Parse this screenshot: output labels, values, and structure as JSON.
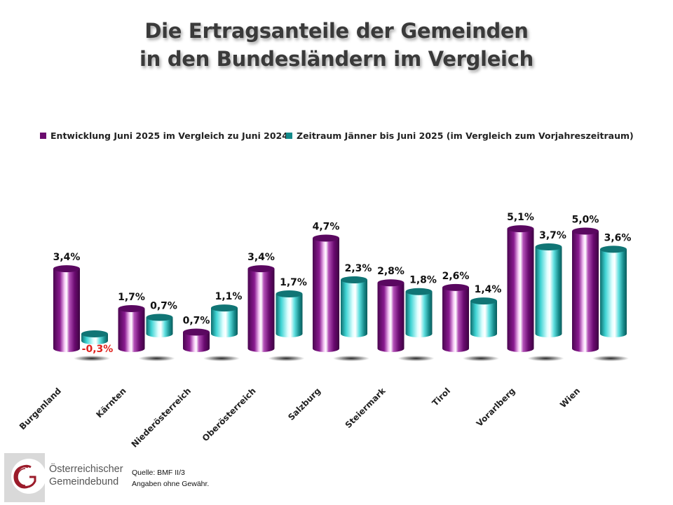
{
  "title": {
    "line1": "Die Ertragsanteile der Gemeinden",
    "line2": "in den Bundesländern im Vergleich"
  },
  "footer": {
    "logo_line1": "Österreichischer",
    "logo_line2": "Gemeindebund",
    "source_line1": "Quelle: BMF II/3",
    "source_line2": "Angaben ohne Gewähr."
  },
  "colors": {
    "series1": "#6b0b6e",
    "series2": "#138a8a",
    "negative_label": "#e0201c",
    "logo_red": "#9b1b2a"
  },
  "chart_data": {
    "type": "bar",
    "style": "3d-cylinder",
    "title": "Die Ertragsanteile der Gemeinden in den Bundesländern im Vergleich",
    "xlabel": "",
    "ylabel": "",
    "grid": false,
    "legend_position": "top",
    "categories": [
      "Burgenland",
      "Kärnten",
      "Niederösterreich",
      "Oberösterreich",
      "Salzburg",
      "Steiermark",
      "Tirol",
      "Vorarlberg",
      "Wien"
    ],
    "series": [
      {
        "name": "Entwicklung Juni 2025 im Vergleich zu Juni 2024",
        "values": [
          3.4,
          1.7,
          0.7,
          3.4,
          4.7,
          2.8,
          2.6,
          5.1,
          5.0
        ],
        "labels": [
          "3,4%",
          "1,7%",
          "0,7%",
          "3,4%",
          "4,7%",
          "2,8%",
          "2,6%",
          "5,1%",
          "5,0%"
        ]
      },
      {
        "name": "Zeitraum Jänner bis Juni 2025 (im Vergleich zum Vorjahreszeitraum)",
        "values": [
          -0.3,
          0.7,
          1.1,
          1.7,
          2.3,
          1.8,
          1.4,
          3.7,
          3.6
        ],
        "labels": [
          "-0,3%",
          "0,7%",
          "1,1%",
          "1,7%",
          "2,3%",
          "1,8%",
          "1,4%",
          "3,7%",
          "3,6%"
        ]
      }
    ]
  }
}
